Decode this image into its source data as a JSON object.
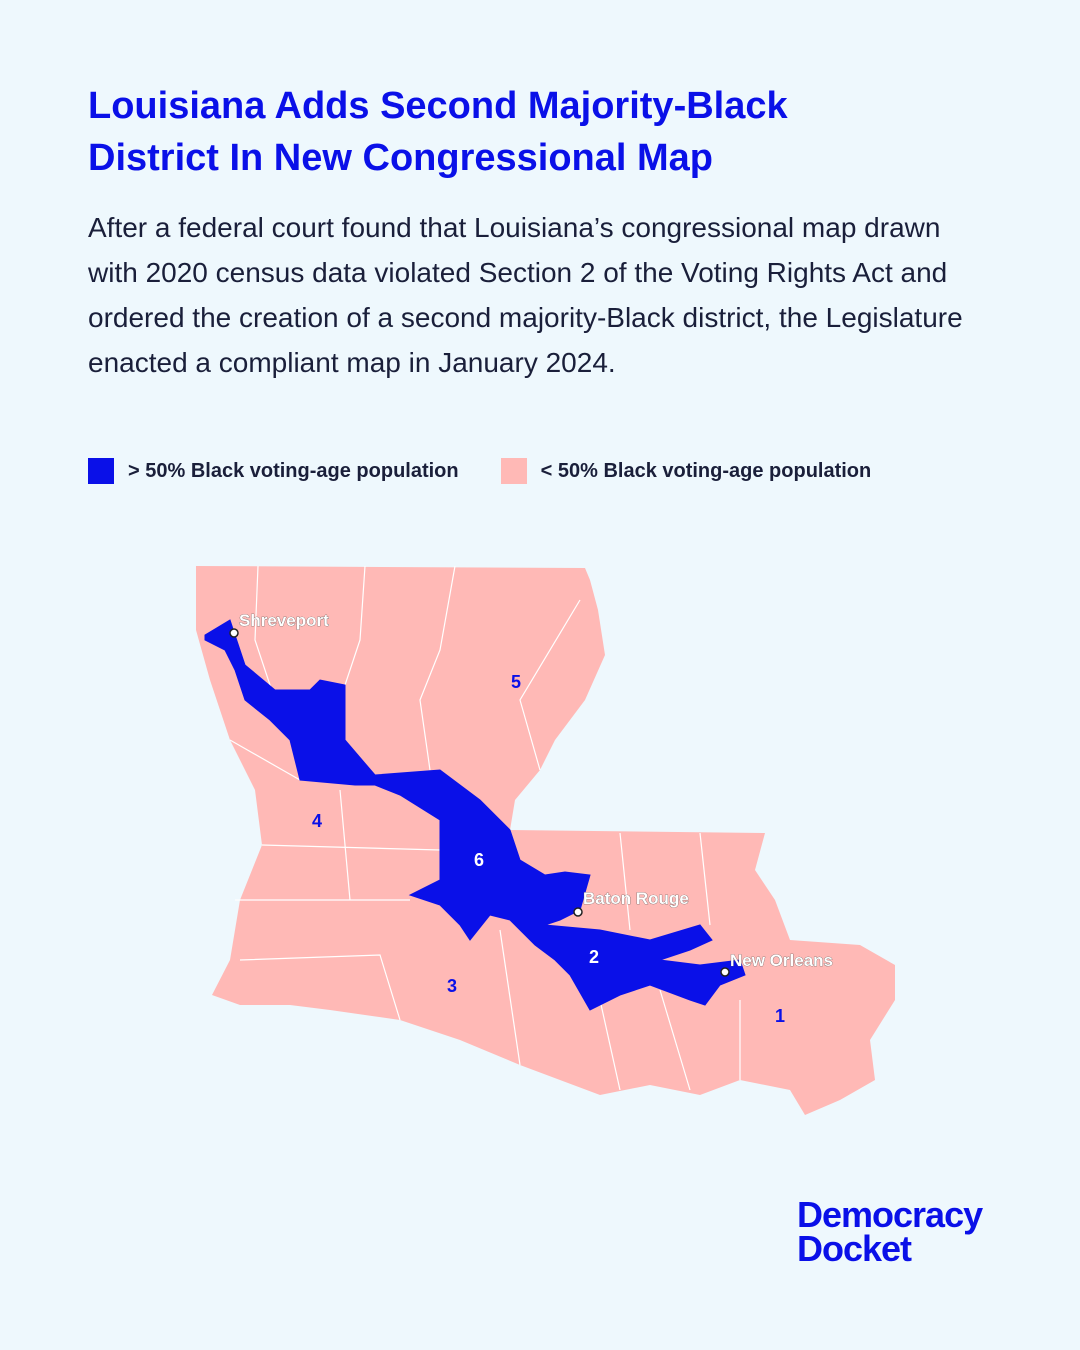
{
  "header": {
    "title": "Louisiana Adds Second Majority-Black District In New Congressional Map",
    "description": "After a federal court found that Louisiana’s congressional map drawn with 2020 census data violated Section 2 of the Voting Rights Act and ordered the creation of a second majority-Black district, the Legislature enacted a compliant map in January 2024."
  },
  "legend": [
    {
      "label": "> 50% Black voting-age population",
      "color": "#0a10e8"
    },
    {
      "label": "< 50% Black voting-age population",
      "color": "#ffb9b6"
    }
  ],
  "map": {
    "districts": [
      "5",
      "4",
      "6",
      "3",
      "2",
      "1"
    ],
    "cities": [
      "Shreveport",
      "Baton Rouge",
      "New Orleans"
    ]
  },
  "footer": {
    "brand_line1": "Democracy",
    "brand_line2": "Docket"
  }
}
